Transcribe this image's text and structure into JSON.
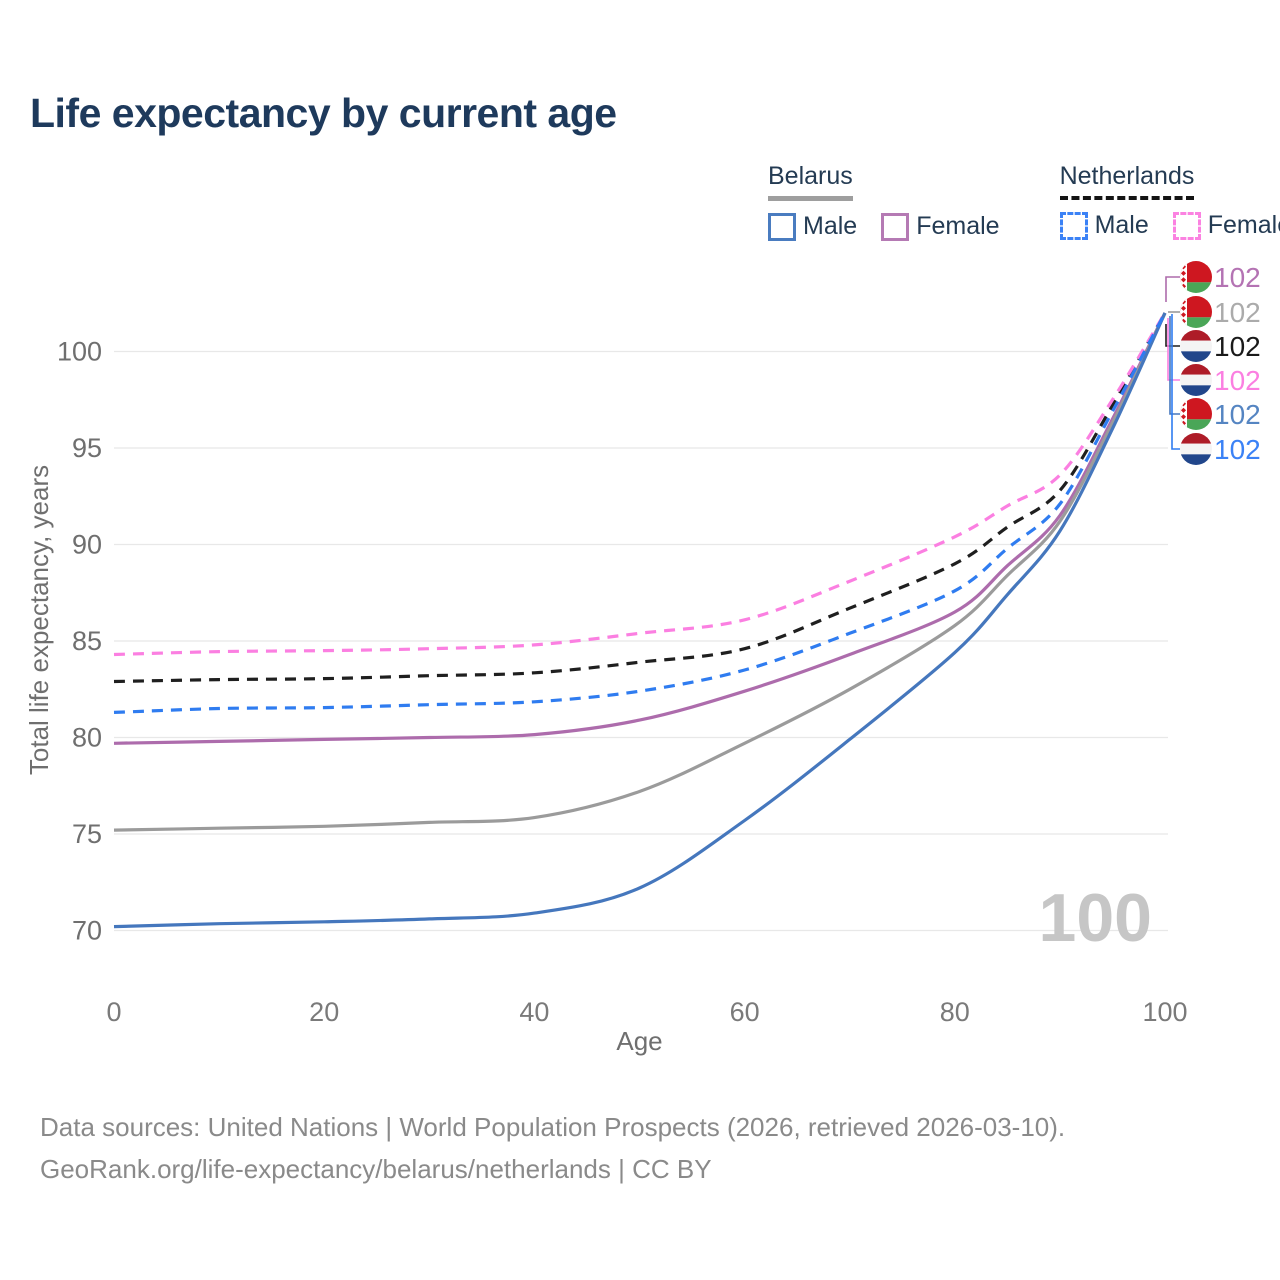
{
  "page": {
    "title": "Life expectancy by current age"
  },
  "legend": {
    "groups": [
      {
        "name": "Belarus",
        "line_style": "solid",
        "underline_color": "#9e9e9e",
        "items": [
          {
            "label": "Male",
            "color": "#4a7cc0"
          },
          {
            "label": "Female",
            "color": "#b57ab4"
          }
        ]
      },
      {
        "name": "Netherlands",
        "line_style": "dashed",
        "underline_color": "#141414",
        "items": [
          {
            "label": "Male",
            "color": "#3b82f6"
          },
          {
            "label": "Female",
            "color": "#fb82e1"
          }
        ]
      }
    ]
  },
  "chart_data": {
    "type": "line",
    "title": "Life expectancy by current age",
    "xlabel": "Age",
    "ylabel": "Total life expectancy, years",
    "xlim": [
      0,
      100
    ],
    "ylim": [
      69,
      103
    ],
    "x_ticks": [
      0,
      20,
      40,
      60,
      80,
      100
    ],
    "y_ticks": [
      70,
      75,
      80,
      85,
      90,
      95,
      100
    ],
    "grid": "horizontal-only",
    "gridline_color": "#e8e8e8",
    "frame_watermark": "100",
    "x": [
      0,
      10,
      20,
      30,
      40,
      50,
      60,
      70,
      80,
      85,
      90,
      95,
      100
    ],
    "series": [
      {
        "name": "Belarus Female",
        "country": "belarus",
        "color": "#ad6cac",
        "label_color": "#b473b3",
        "dash": false,
        "end_label": "102",
        "values": [
          79.7,
          79.8,
          79.9,
          80.0,
          80.15,
          80.9,
          82.4,
          84.3,
          86.5,
          88.9,
          91.5,
          96.5,
          102
        ]
      },
      {
        "name": "Belarus",
        "country": "belarus",
        "color": "#9b9b9b",
        "label_color": "#ababab",
        "dash": false,
        "end_label": "102",
        "values": [
          75.2,
          75.3,
          75.4,
          75.6,
          75.85,
          77.2,
          79.7,
          82.5,
          85.8,
          88.4,
          91.2,
          96.3,
          102
        ]
      },
      {
        "name": "Netherlands",
        "country": "netherlands",
        "color": "#1f1f1f",
        "label_color": "#1a1a1a",
        "dash": true,
        "end_label": "102",
        "values": [
          82.9,
          83.0,
          83.05,
          83.2,
          83.35,
          83.9,
          84.6,
          86.7,
          89.0,
          90.9,
          92.8,
          97.2,
          102
        ]
      },
      {
        "name": "Netherlands Female",
        "country": "netherlands",
        "color": "#fb7fe1",
        "label_color": "#fb7fe1",
        "dash": true,
        "end_label": "102",
        "values": [
          84.3,
          84.45,
          84.5,
          84.6,
          84.8,
          85.4,
          86.1,
          88.1,
          90.4,
          92.0,
          93.6,
          97.5,
          102
        ]
      },
      {
        "name": "Belarus Male",
        "country": "belarus",
        "color": "#4577bd",
        "label_color": "#5585c2",
        "dash": false,
        "end_label": "102",
        "values": [
          70.2,
          70.35,
          70.45,
          70.6,
          70.9,
          72.2,
          75.7,
          79.9,
          84.4,
          87.4,
          90.7,
          96.0,
          102
        ]
      },
      {
        "name": "Netherlands Male",
        "country": "netherlands",
        "color": "#2f7cf0",
        "label_color": "#3b82f6",
        "dash": true,
        "end_label": "102",
        "values": [
          81.3,
          81.5,
          81.55,
          81.7,
          81.85,
          82.4,
          83.5,
          85.4,
          87.6,
          89.8,
          92.1,
          96.9,
          102
        ]
      }
    ],
    "flags": {
      "belarus": {
        "red": "#ce1720",
        "green": "#4aa657",
        "ornament_bg": "#ffffff"
      },
      "netherlands": {
        "red": "#ae1c28",
        "white": "#f4f4f4",
        "blue": "#21468b"
      }
    }
  },
  "footer": {
    "line1": "Data sources: United Nations | World Population Prospects (2026, retrieved 2026-03-10).",
    "line2": "GeoRank.org/life-expectancy/belarus/netherlands | CC BY"
  }
}
